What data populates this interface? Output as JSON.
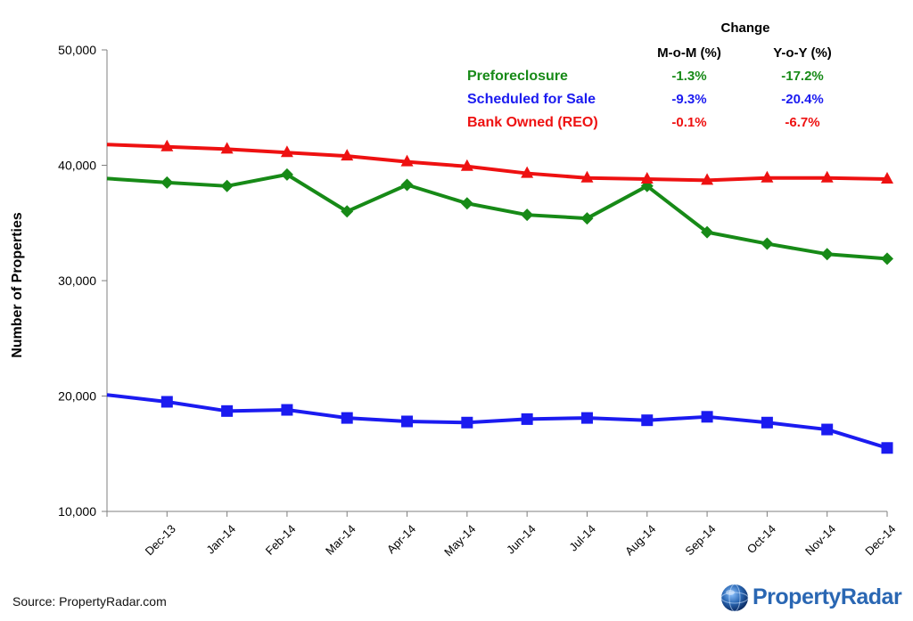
{
  "chart_data": {
    "type": "line",
    "categories": [
      "Dec-13",
      "Jan-14",
      "Feb-14",
      "Mar-14",
      "Apr-14",
      "May-14",
      "Jun-14",
      "Jul-14",
      "Aug-14",
      "Sep-14",
      "Oct-14",
      "Nov-14",
      "Dec-14"
    ],
    "ylabel": "Number of Properties",
    "ylim": [
      10000,
      50000
    ],
    "yticks": [
      10000,
      20000,
      30000,
      40000,
      50000
    ],
    "ytick_labels": [
      "10,000",
      "20,000",
      "30,000",
      "40,000",
      "50,000"
    ],
    "series": [
      {
        "name": "Preforeclosure",
        "color": "#178a17",
        "marker": "diamond",
        "start": 38850,
        "values": [
          38500,
          38200,
          39200,
          36000,
          38300,
          36700,
          35700,
          35400,
          38200,
          34200,
          33200,
          32300,
          31900
        ]
      },
      {
        "name": "Scheduled for Sale",
        "color": "#1b1bf0",
        "marker": "square",
        "start": 20100,
        "values": [
          19500,
          18700,
          18800,
          18100,
          17800,
          17700,
          18000,
          18100,
          17900,
          18200,
          17700,
          17100,
          15500
        ]
      },
      {
        "name": "Bank Owned (REO)",
        "color": "#ee1111",
        "marker": "triangle",
        "start": 41800,
        "values": [
          41600,
          41400,
          41100,
          40800,
          40300,
          39900,
          39300,
          38900,
          38800,
          38700,
          38900,
          38900,
          38800
        ]
      }
    ]
  },
  "legend": {
    "title": "Change",
    "col_mom": "M-o-M (%)",
    "col_yoy": "Y-o-Y (%)",
    "rows": [
      {
        "name": "Preforeclosure",
        "mom": "-1.3%",
        "yoy": "-17.2%",
        "color": "#178a17"
      },
      {
        "name": "Scheduled for Sale",
        "mom": "-9.3%",
        "yoy": "-20.4%",
        "color": "#1b1bf0"
      },
      {
        "name": "Bank Owned (REO)",
        "mom": "-0.1%",
        "yoy": "-6.7%",
        "color": "#ee1111"
      }
    ]
  },
  "footer": {
    "source": "Source: PropertyRadar.com",
    "logo_property": "Property",
    "logo_radar": "Radar"
  }
}
